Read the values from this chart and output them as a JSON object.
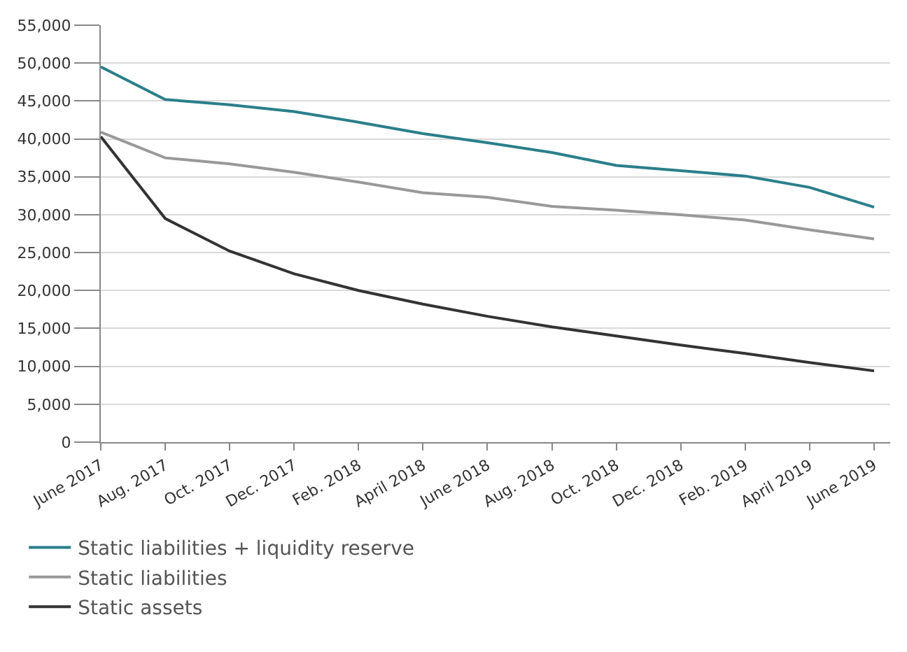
{
  "chart_data": {
    "type": "line",
    "categories": [
      "June 2017",
      "Aug. 2017",
      "Oct. 2017",
      "Dec. 2017",
      "Feb. 2018",
      "April 2018",
      "June 2018",
      "Aug. 2018",
      "Oct. 2018",
      "Dec. 2018",
      "Feb. 2019",
      "April 2019",
      "June 2019"
    ],
    "series": [
      {
        "name": "Static liabilities + liquidity reserve",
        "color": "#2a7f8a",
        "values": [
          49500,
          45200,
          44500,
          43600,
          42200,
          40700,
          39500,
          38200,
          36500,
          35800,
          35100,
          33600,
          31000
        ]
      },
      {
        "name": "Static liabilities",
        "color": "#999999",
        "values": [
          40900,
          37500,
          36700,
          35600,
          34300,
          32900,
          32300,
          31100,
          30600,
          30000,
          29300,
          28000,
          26800
        ]
      },
      {
        "name": "Static assets",
        "color": "#333333",
        "values": [
          40300,
          29500,
          25200,
          22200,
          20000,
          18200,
          16600,
          15200,
          14000,
          12800,
          11700,
          10500,
          9400
        ]
      }
    ],
    "ylim": [
      0,
      55000
    ],
    "yticks": [
      {
        "value": 0,
        "label": "0"
      },
      {
        "value": 5000,
        "label": "5,000"
      },
      {
        "value": 10000,
        "label": "10,000"
      },
      {
        "value": 15000,
        "label": "15,000"
      },
      {
        "value": 20000,
        "label": "20,000"
      },
      {
        "value": 25000,
        "label": "25,000"
      },
      {
        "value": 30000,
        "label": "30,000"
      },
      {
        "value": 35000,
        "label": "35,000"
      },
      {
        "value": 40000,
        "label": "40,000"
      },
      {
        "value": 45000,
        "label": "45,000"
      },
      {
        "value": 50000,
        "label": "50,000"
      },
      {
        "value": 55000,
        "label": "55,000"
      }
    ],
    "grid": "y",
    "legend": "bottom left",
    "marker": "none",
    "line_style": "solid"
  }
}
